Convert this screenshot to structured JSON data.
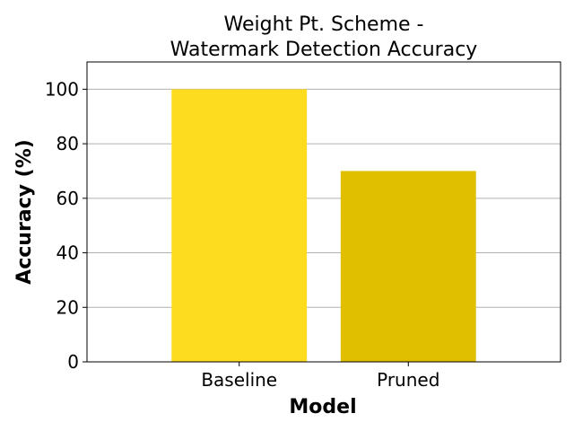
{
  "chart_data": {
    "type": "bar",
    "title_lines": [
      "Weight Pt. Scheme -",
      "Watermark Detection Accuracy"
    ],
    "xlabel": "Model",
    "ylabel": "Accuracy (%)",
    "categories": [
      "Baseline",
      "Pruned"
    ],
    "values": [
      100,
      70
    ],
    "bar_colors": [
      "#fddc20",
      "#e0be00"
    ],
    "ylim": [
      0,
      110
    ],
    "yticks": [
      0,
      20,
      40,
      60,
      80,
      100
    ],
    "grid": "horizontal",
    "grid_color": "#b0b0b0",
    "legend": "none"
  }
}
